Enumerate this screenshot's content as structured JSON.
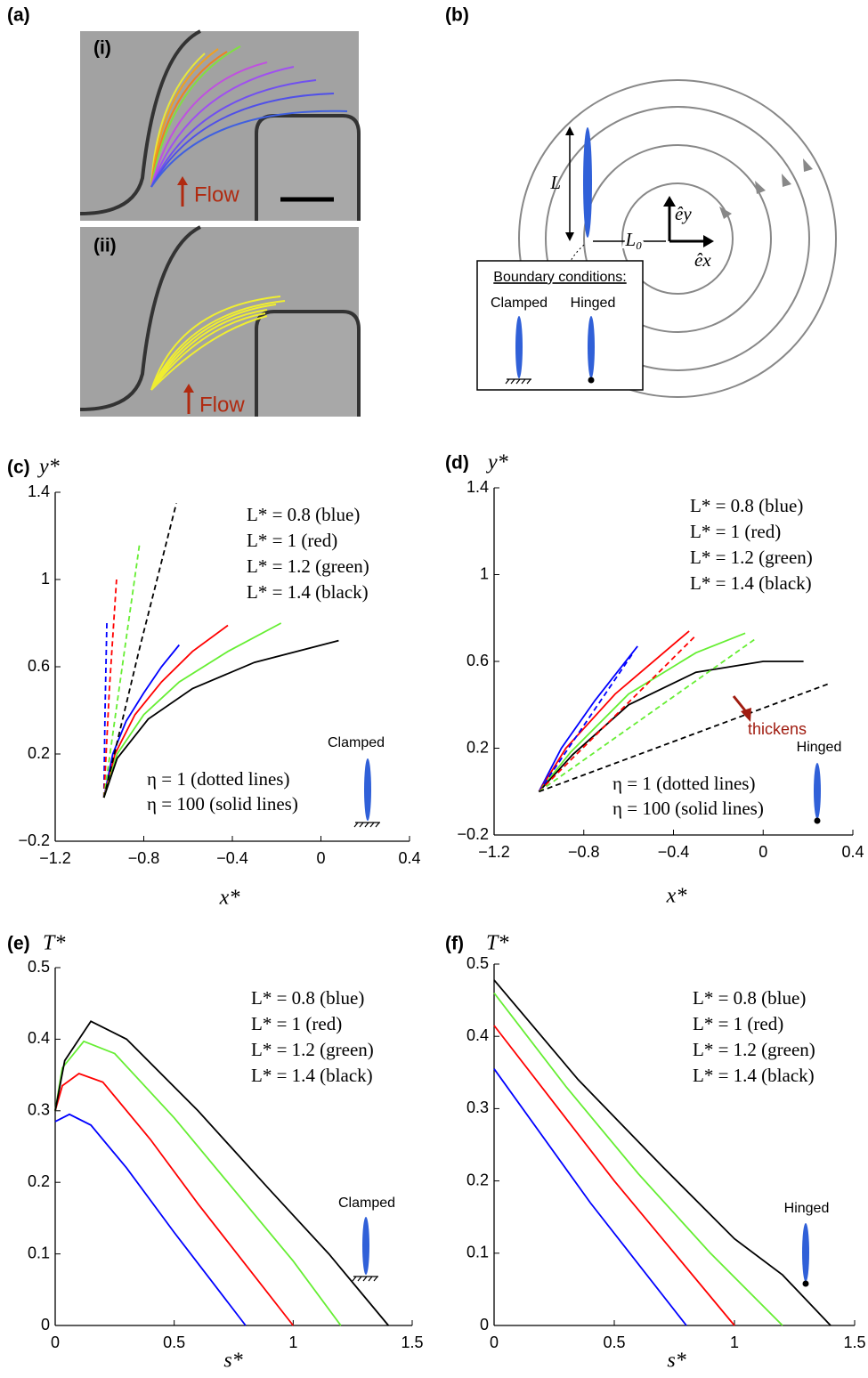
{
  "figure": {
    "panel_a": {
      "label": "(a)",
      "sub_i": "(i)",
      "flow_i": "Flow",
      "sub_ii": "(ii)",
      "flow_ii": "Flow"
    },
    "panel_b": {
      "label": "(b)",
      "length": "L",
      "offset": "L₀",
      "e_y": "êy",
      "e_x": "êx",
      "box_title": "Boundary conditions:",
      "clamped": "Clamped",
      "hinged": "Hinged"
    }
  },
  "chart_data": [
    {
      "type": "line",
      "panel": "(c)",
      "ylabel": "y*",
      "xlabel": "x*",
      "xlim": [
        -1.2,
        0.4
      ],
      "ylim": [
        -0.2,
        1.4
      ],
      "xticks": [
        {
          "value": -1.2,
          "label": "−1.2"
        },
        {
          "value": -0.8,
          "label": "−0.8"
        },
        {
          "value": -0.4,
          "label": "−0.4"
        },
        0,
        0.4
      ],
      "yticks": [
        {
          "value": -0.2,
          "label": "−0.2"
        },
        0.2,
        0.6,
        1,
        1.4
      ],
      "legend": [
        "L* = 0.8 (blue)",
        "L* = 1 (red)",
        "L* = 1.2 (green)",
        "L* = 1.4 (black)"
      ],
      "eta_notes": [
        "η = 1 (dotted lines)",
        "η = 100 (solid lines)"
      ],
      "boundary": "Clamped",
      "series": [
        {
          "color": "#0000ff",
          "dash": false,
          "x": [
            -0.98,
            -0.94,
            -0.88,
            -0.8,
            -0.72,
            -0.64
          ],
          "values": [
            0,
            0.2,
            0.35,
            0.48,
            0.6,
            0.7
          ]
        },
        {
          "color": "#ff0000",
          "dash": false,
          "x": [
            -0.98,
            -0.93,
            -0.84,
            -0.72,
            -0.58,
            -0.42
          ],
          "values": [
            0,
            0.2,
            0.38,
            0.53,
            0.67,
            0.79
          ]
        },
        {
          "color": "#66ee33",
          "dash": false,
          "x": [
            -0.98,
            -0.92,
            -0.8,
            -0.64,
            -0.42,
            -0.18
          ],
          "values": [
            0,
            0.2,
            0.38,
            0.53,
            0.67,
            0.8
          ]
        },
        {
          "color": "#000000",
          "dash": false,
          "x": [
            -0.98,
            -0.92,
            -0.78,
            -0.58,
            -0.3,
            0.08
          ],
          "values": [
            0,
            0.18,
            0.36,
            0.5,
            0.62,
            0.72
          ]
        },
        {
          "color": "#0000ff",
          "dash": true,
          "x": [
            -0.98,
            -0.975,
            -0.967
          ],
          "values": [
            0,
            0.4,
            0.8
          ]
        },
        {
          "color": "#ff0000",
          "dash": true,
          "x": [
            -0.98,
            -0.955,
            -0.923
          ],
          "values": [
            0,
            0.5,
            1.0
          ]
        },
        {
          "color": "#66ee33",
          "dash": true,
          "x": [
            -0.98,
            -0.9,
            -0.818
          ],
          "values": [
            0,
            0.58,
            1.17
          ]
        },
        {
          "color": "#000000",
          "dash": true,
          "x": [
            -0.98,
            -0.82,
            -0.653
          ],
          "values": [
            0,
            0.68,
            1.35
          ]
        }
      ]
    },
    {
      "type": "line",
      "panel": "(d)",
      "ylabel": "y*",
      "xlabel": "x*",
      "xlim": [
        -1.2,
        0.4
      ],
      "ylim": [
        -0.2,
        1.4
      ],
      "xticks": [
        {
          "value": -1.2,
          "label": "−1.2"
        },
        {
          "value": -0.8,
          "label": "−0.8"
        },
        {
          "value": -0.4,
          "label": "−0.4"
        },
        0,
        0.4
      ],
      "yticks": [
        {
          "value": -0.2,
          "label": "−0.2"
        },
        0.2,
        0.6,
        1,
        1.4
      ],
      "legend": [
        "L* = 0.8 (blue)",
        "L* = 1 (red)",
        "L* = 1.2 (green)",
        "L* = 1.4 (black)"
      ],
      "eta_notes": [
        "η = 1 (dotted lines)",
        "η = 100 (solid lines)"
      ],
      "boundary": "Hinged",
      "arrow_note": "thickens",
      "series": [
        {
          "color": "#0000ff",
          "dash": false,
          "x": [
            -1.0,
            -0.9,
            -0.75,
            -0.56
          ],
          "values": [
            0,
            0.2,
            0.42,
            0.67
          ]
        },
        {
          "color": "#ff0000",
          "dash": false,
          "x": [
            -1.0,
            -0.88,
            -0.66,
            -0.33
          ],
          "values": [
            0,
            0.2,
            0.45,
            0.74
          ]
        },
        {
          "color": "#66ee33",
          "dash": false,
          "x": [
            -1.0,
            -0.86,
            -0.6,
            -0.3,
            -0.08
          ],
          "values": [
            0,
            0.18,
            0.45,
            0.64,
            0.73
          ]
        },
        {
          "color": "#000000",
          "dash": false,
          "x": [
            -1.0,
            -0.85,
            -0.6,
            -0.3,
            0,
            0.18
          ],
          "values": [
            0,
            0.17,
            0.4,
            0.55,
            0.6,
            0.6
          ]
        },
        {
          "color": "#0000ff",
          "dash": true,
          "x": [
            -1.0,
            -0.58
          ],
          "values": [
            0,
            0.64
          ]
        },
        {
          "color": "#ff0000",
          "dash": true,
          "x": [
            -1.0,
            -0.3
          ],
          "values": [
            0,
            0.72
          ]
        },
        {
          "color": "#66ee33",
          "dash": true,
          "x": [
            -1.0,
            -0.04
          ],
          "values": [
            0,
            0.7
          ]
        },
        {
          "color": "#000000",
          "dash": true,
          "x": [
            -1.0,
            0.3
          ],
          "values": [
            0,
            0.5
          ]
        }
      ]
    },
    {
      "type": "line",
      "panel": "(e)",
      "ylabel": "T*",
      "xlabel": "s*",
      "xlim": [
        0,
        1.5
      ],
      "ylim": [
        0,
        0.5
      ],
      "xticks": [
        0,
        0.5,
        1,
        1.5
      ],
      "yticks": [
        0,
        0.1,
        0.2,
        0.3,
        0.4,
        0.5
      ],
      "legend": [
        "L* = 0.8 (blue)",
        "L* = 1 (red)",
        "L* = 1.2 (green)",
        "L* = 1.4 (black)"
      ],
      "boundary": "Clamped",
      "series": [
        {
          "color": "#0000ff",
          "dash": false,
          "x": [
            0,
            0.06,
            0.15,
            0.3,
            0.5,
            0.65,
            0.8
          ],
          "values": [
            0.285,
            0.295,
            0.28,
            0.22,
            0.13,
            0.065,
            0
          ]
        },
        {
          "color": "#ff0000",
          "dash": false,
          "x": [
            0,
            0.03,
            0.1,
            0.2,
            0.4,
            0.6,
            0.8,
            1.0
          ],
          "values": [
            0.3,
            0.335,
            0.352,
            0.34,
            0.26,
            0.17,
            0.085,
            0
          ]
        },
        {
          "color": "#66ee33",
          "dash": false,
          "x": [
            0,
            0.03,
            0.12,
            0.25,
            0.5,
            0.75,
            1.0,
            1.2
          ],
          "values": [
            0.3,
            0.36,
            0.397,
            0.38,
            0.29,
            0.19,
            0.09,
            0
          ]
        },
        {
          "color": "#000000",
          "dash": false,
          "x": [
            0,
            0.04,
            0.15,
            0.3,
            0.6,
            0.9,
            1.15,
            1.4
          ],
          "values": [
            0.3,
            0.37,
            0.425,
            0.4,
            0.3,
            0.19,
            0.1,
            0
          ]
        }
      ]
    },
    {
      "type": "line",
      "panel": "(f)",
      "ylabel": "T*",
      "xlabel": "s*",
      "xlim": [
        0,
        1.5
      ],
      "ylim": [
        0,
        0.5
      ],
      "xticks": [
        0,
        0.5,
        1,
        1.5
      ],
      "yticks": [
        0,
        0.1,
        0.2,
        0.3,
        0.4,
        0.5
      ],
      "legend": [
        "L* = 0.8 (blue)",
        "L* = 1 (red)",
        "L* = 1.2 (green)",
        "L* = 1.4 (black)"
      ],
      "boundary": "Hinged",
      "series": [
        {
          "color": "#0000ff",
          "dash": false,
          "x": [
            0,
            0.4,
            0.8
          ],
          "values": [
            0.355,
            0.17,
            0
          ]
        },
        {
          "color": "#ff0000",
          "dash": false,
          "x": [
            0,
            0.5,
            1.0
          ],
          "values": [
            0.415,
            0.2,
            0
          ]
        },
        {
          "color": "#66ee33",
          "dash": false,
          "x": [
            0,
            0.3,
            0.6,
            0.9,
            1.2
          ],
          "values": [
            0.46,
            0.33,
            0.21,
            0.1,
            0
          ]
        },
        {
          "color": "#000000",
          "dash": false,
          "x": [
            0,
            0.35,
            0.7,
            1.0,
            1.2,
            1.4
          ],
          "values": [
            0.478,
            0.34,
            0.22,
            0.12,
            0.07,
            0
          ]
        }
      ]
    }
  ]
}
